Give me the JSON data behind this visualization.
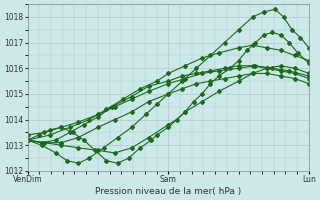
{
  "title": "Pression niveau de la mer( hPa )",
  "ylim": [
    1012,
    1018.5
  ],
  "yticks": [
    1012,
    1013,
    1014,
    1015,
    1016,
    1017,
    1018
  ],
  "xtick_labels": [
    "VenDim",
    "Sam",
    "Lun"
  ],
  "xtick_positions": [
    0,
    0.5,
    1.0
  ],
  "bg_color": "#cce8e8",
  "grid_color": "#aacccc",
  "line_color": "#1a6b1a",
  "series": [
    {
      "x": [
        0.0,
        0.06,
        0.12,
        0.18,
        0.25,
        0.31,
        0.37,
        0.43,
        0.5,
        0.53,
        0.56,
        0.59,
        0.62,
        0.65,
        0.68,
        0.72,
        0.75,
        0.78,
        0.81,
        0.84,
        0.87,
        0.9,
        0.93,
        0.96,
        1.0
      ],
      "y": [
        1013.2,
        1013.1,
        1013.0,
        1012.9,
        1012.8,
        1012.7,
        1012.9,
        1013.3,
        1013.8,
        1014.0,
        1014.3,
        1014.7,
        1015.0,
        1015.4,
        1015.7,
        1016.0,
        1016.3,
        1016.7,
        1017.0,
        1017.3,
        1017.4,
        1017.3,
        1017.0,
        1016.6,
        1016.2
      ]
    },
    {
      "x": [
        0.0,
        0.06,
        0.12,
        0.18,
        0.25,
        0.31,
        0.37,
        0.43,
        0.5,
        0.55,
        0.6,
        0.65,
        0.7,
        0.75,
        0.8,
        0.85,
        0.9,
        0.95,
        1.0
      ],
      "y": [
        1013.2,
        1013.1,
        1013.1,
        1013.3,
        1013.7,
        1014.0,
        1014.3,
        1014.7,
        1015.0,
        1015.2,
        1015.4,
        1015.5,
        1015.6,
        1015.7,
        1015.8,
        1015.8,
        1015.7,
        1015.6,
        1015.4
      ]
    },
    {
      "x": [
        0.0,
        0.05,
        0.1,
        0.15,
        0.2,
        0.25,
        0.3,
        0.37,
        0.43,
        0.5,
        0.55,
        0.6,
        0.65,
        0.7,
        0.75,
        0.8,
        0.85,
        0.9,
        0.95,
        1.0
      ],
      "y": [
        1013.2,
        1013.1,
        1013.2,
        1013.5,
        1013.8,
        1014.1,
        1014.5,
        1014.9,
        1015.3,
        1015.5,
        1015.7,
        1015.8,
        1015.9,
        1016.0,
        1016.1,
        1016.1,
        1016.0,
        1015.9,
        1015.8,
        1015.6
      ]
    },
    {
      "x": [
        0.0,
        0.08,
        0.15,
        0.22,
        0.28,
        0.34,
        0.4,
        0.46,
        0.5,
        0.56,
        0.62,
        0.68,
        0.75,
        0.8,
        0.85,
        0.9,
        0.95,
        1.0
      ],
      "y": [
        1013.2,
        1013.4,
        1013.7,
        1014.0,
        1014.4,
        1014.8,
        1015.2,
        1015.5,
        1015.8,
        1016.1,
        1016.4,
        1016.6,
        1016.8,
        1016.9,
        1016.8,
        1016.7,
        1016.5,
        1016.3
      ]
    },
    {
      "x": [
        0.0,
        0.05,
        0.1,
        0.14,
        0.18,
        0.22,
        0.27,
        0.32,
        0.37,
        0.42,
        0.46,
        0.5,
        0.55,
        0.6,
        0.65,
        0.7,
        0.75,
        0.8,
        0.84,
        0.88,
        0.91,
        0.94,
        0.97,
        1.0
      ],
      "y": [
        1013.2,
        1013.0,
        1012.7,
        1012.4,
        1012.3,
        1012.5,
        1012.9,
        1013.3,
        1013.7,
        1014.2,
        1014.6,
        1015.0,
        1015.5,
        1016.0,
        1016.5,
        1017.0,
        1017.5,
        1018.0,
        1018.2,
        1018.3,
        1018.0,
        1017.5,
        1017.2,
        1016.8
      ]
    },
    {
      "x": [
        0.0,
        0.04,
        0.08,
        0.12,
        0.16,
        0.2,
        0.24,
        0.28,
        0.32,
        0.36,
        0.4,
        0.44,
        0.46,
        0.5,
        0.56,
        0.62,
        0.68,
        0.75,
        0.8,
        0.85,
        0.9,
        0.95,
        1.0
      ],
      "y": [
        1013.2,
        1013.4,
        1013.6,
        1013.7,
        1013.5,
        1013.2,
        1012.8,
        1012.4,
        1012.3,
        1012.5,
        1012.9,
        1013.2,
        1013.4,
        1013.7,
        1014.3,
        1014.7,
        1015.1,
        1015.5,
        1015.8,
        1016.0,
        1016.1,
        1016.0,
        1015.8
      ]
    },
    {
      "x": [
        0.0,
        0.06,
        0.12,
        0.18,
        0.25,
        0.31,
        0.37,
        0.43,
        0.5,
        0.56,
        0.62,
        0.68,
        0.75,
        0.81,
        0.87,
        0.93,
        1.0
      ],
      "y": [
        1013.4,
        1013.5,
        1013.7,
        1013.9,
        1014.2,
        1014.5,
        1014.8,
        1015.1,
        1015.4,
        1015.6,
        1015.8,
        1015.9,
        1016.0,
        1016.1,
        1016.0,
        1015.9,
        1015.7
      ]
    }
  ]
}
